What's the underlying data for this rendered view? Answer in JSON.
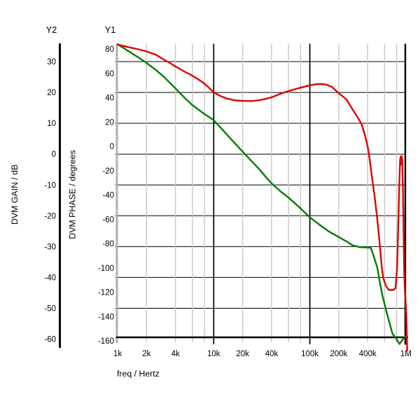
{
  "figure": {
    "y2_header": "Y2",
    "y1_header": "Y1",
    "y2_axis_title": "DVM GAIN / dB",
    "y1_axis_title": "DVM PHASE / degrees",
    "x_axis_title": "freq / Hertz"
  },
  "colors": {
    "background": "#ffffff",
    "text": "#000000",
    "gain_curve": "#007c00",
    "phase_curve": "#e00000",
    "grid_horizontal": "#000000",
    "grid_vertical_minor": "#c8c8c8",
    "grid_vertical_major": "#000000",
    "y1_axis_line": "#b2b2b2",
    "y2_axis_line": "#000000"
  },
  "chart_data": {
    "type": "line",
    "x_axis": {
      "label": "freq / Hertz",
      "scale": "log",
      "range": [
        1000,
        1000000
      ],
      "labeled_ticks": [
        {
          "f": 1000,
          "label": "1k"
        },
        {
          "f": 2000,
          "label": "2k"
        },
        {
          "f": 4000,
          "label": "4k"
        },
        {
          "f": 10000,
          "label": "10k"
        },
        {
          "f": 20000,
          "label": "20k"
        },
        {
          "f": 40000,
          "label": "40k"
        },
        {
          "f": 100000,
          "label": "100k"
        },
        {
          "f": 200000,
          "label": "200k"
        },
        {
          "f": 400000,
          "label": "400k"
        },
        {
          "f": 1000000,
          "label": "1M"
        }
      ],
      "unlabeled_ticks": [
        6000,
        8000,
        60000,
        80000,
        600000,
        800000
      ],
      "major_grid_at": [
        10000,
        100000,
        1000000
      ]
    },
    "y1_axis": {
      "name": "Y1",
      "label": "DVM PHASE / degrees",
      "range": [
        -160,
        80
      ],
      "ticks": [
        80,
        60,
        40,
        20,
        0,
        -20,
        -40,
        -60,
        -80,
        -100,
        -120,
        -140,
        -160
      ]
    },
    "y2_axis": {
      "name": "Y2",
      "label": "DVM GAIN / dB",
      "range": [
        -60,
        30
      ],
      "ticks": [
        30,
        20,
        10,
        0,
        -10,
        -20,
        -30,
        -40,
        -50,
        -60
      ],
      "grid_follows": "y2_ticks"
    },
    "series": [
      {
        "name": "DVM GAIN",
        "axis": "y2",
        "units": "dB",
        "color": "#007c00",
        "points": [
          [
            1000,
            35.6
          ],
          [
            1300,
            33.4
          ],
          [
            1600,
            31.6
          ],
          [
            2000,
            29.6
          ],
          [
            2500,
            27.3
          ],
          [
            3000,
            25.2
          ],
          [
            4000,
            21.3
          ],
          [
            5000,
            18.2
          ],
          [
            6000,
            15.9
          ],
          [
            8000,
            13.0
          ],
          [
            10000,
            11.0
          ],
          [
            12000,
            8.3
          ],
          [
            15000,
            5.0
          ],
          [
            20000,
            0.8
          ],
          [
            25000,
            -2.4
          ],
          [
            30000,
            -5.0
          ],
          [
            35000,
            -7.5
          ],
          [
            40000,
            -9.5
          ],
          [
            50000,
            -12.2
          ],
          [
            60000,
            -14.1
          ],
          [
            80000,
            -17.6
          ],
          [
            100000,
            -20.5
          ],
          [
            130000,
            -23.2
          ],
          [
            160000,
            -25.2
          ],
          [
            200000,
            -26.9
          ],
          [
            240000,
            -28.3
          ],
          [
            280000,
            -29.6
          ],
          [
            330000,
            -30.2
          ],
          [
            400000,
            -30.3
          ],
          [
            430000,
            -30.4
          ],
          [
            455000,
            -32.4
          ],
          [
            505000,
            -37.0
          ],
          [
            535000,
            -41.5
          ],
          [
            570000,
            -46.0
          ],
          [
            640000,
            -52.2
          ],
          [
            725000,
            -58.3
          ],
          [
            786000,
            -59.7
          ],
          [
            857000,
            -61.6
          ],
          [
            920000,
            -60.3
          ],
          [
            1000000,
            -59.0
          ]
        ]
      },
      {
        "name": "DVM PHASE",
        "axis": "y1",
        "units": "degrees",
        "color": "#e00000",
        "points": [
          [
            1000,
            83.7
          ],
          [
            1300,
            81.5
          ],
          [
            1600,
            80.0
          ],
          [
            2000,
            78.0
          ],
          [
            2500,
            75.3
          ],
          [
            3000,
            71.5
          ],
          [
            3500,
            68.5
          ],
          [
            4000,
            65.6
          ],
          [
            5000,
            61.3
          ],
          [
            6000,
            58.0
          ],
          [
            7000,
            54.8
          ],
          [
            8000,
            51.5
          ],
          [
            9000,
            47.8
          ],
          [
            10000,
            44.3
          ],
          [
            12000,
            41.0
          ],
          [
            14000,
            39.0
          ],
          [
            17000,
            37.7
          ],
          [
            20000,
            37.3
          ],
          [
            25000,
            37.2
          ],
          [
            30000,
            37.9
          ],
          [
            35000,
            39.0
          ],
          [
            40000,
            40.3
          ],
          [
            50000,
            43.3
          ],
          [
            60000,
            45.4
          ],
          [
            70000,
            46.9
          ],
          [
            80000,
            48.2
          ],
          [
            100000,
            50.2
          ],
          [
            115000,
            51.0
          ],
          [
            130000,
            51.3
          ],
          [
            150000,
            50.6
          ],
          [
            170000,
            48.8
          ],
          [
            200000,
            43.7
          ],
          [
            240000,
            38.6
          ],
          [
            280000,
            30.0
          ],
          [
            310000,
            24.5
          ],
          [
            345000,
            18.4
          ],
          [
            375000,
            9.0
          ],
          [
            400000,
            -0.6
          ],
          [
            420000,
            -11.0
          ],
          [
            440000,
            -23.6
          ],
          [
            470000,
            -40.0
          ],
          [
            500000,
            -58.0
          ],
          [
            520000,
            -71.0
          ],
          [
            540000,
            -85.0
          ],
          [
            560000,
            -99.0
          ],
          [
            580000,
            -108.0
          ],
          [
            620000,
            -115.0
          ],
          [
            660000,
            -118.0
          ],
          [
            700000,
            -118.2
          ],
          [
            750000,
            -118.0
          ],
          [
            780000,
            -116.5
          ],
          [
            810000,
            -100.0
          ],
          [
            835000,
            -62.0
          ],
          [
            855000,
            -28.0
          ],
          [
            870000,
            -11.0
          ],
          [
            880000,
            -8.5
          ],
          [
            890000,
            -15.0
          ],
          [
            900000,
            -8.0
          ],
          [
            915000,
            -10.5
          ],
          [
            930000,
            -35.0
          ],
          [
            945000,
            -70.0
          ],
          [
            960000,
            -105.0
          ],
          [
            975000,
            -118.0
          ],
          [
            990000,
            -126.0
          ],
          [
            1010000,
            -140.0
          ],
          [
            1030000,
            -168.0
          ]
        ]
      }
    ]
  }
}
